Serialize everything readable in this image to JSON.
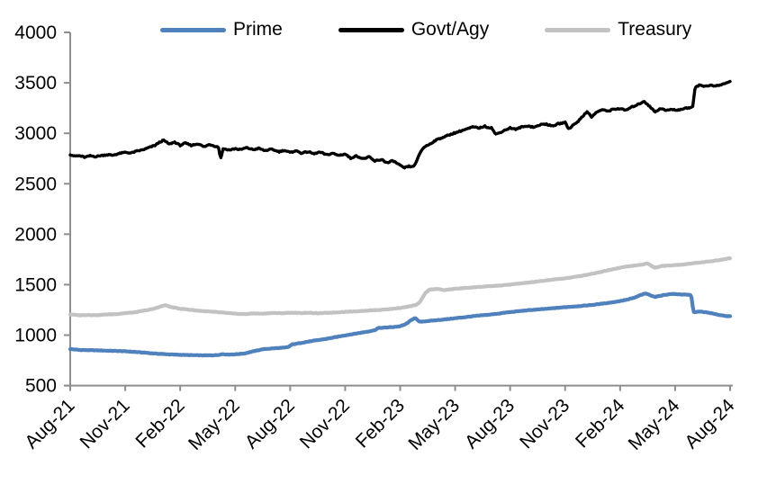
{
  "chart_data": {
    "type": "line",
    "title": "",
    "grid": false,
    "legend_position": "top-center",
    "x_axis": {
      "unit": "months since Aug-2021",
      "range_months": [
        0,
        36
      ],
      "tick_interval_months": 3,
      "tick_labels": [
        "Aug-21",
        "Nov-21",
        "Feb-22",
        "May-22",
        "Aug-22",
        "Nov-22",
        "Feb-23",
        "May-23",
        "Aug-23",
        "Nov-23",
        "Feb-24",
        "May-24",
        "Aug-24"
      ]
    },
    "y_axis": {
      "ylim": [
        500,
        4000
      ],
      "tick_step": 500,
      "tick_labels": [
        "500",
        "1000",
        "1500",
        "2000",
        "2500",
        "3000",
        "3500",
        "4000"
      ]
    },
    "axis_color": "#8E8E8E",
    "series": [
      {
        "name": "Prime",
        "color": "#4F81BD",
        "points": [
          [
            0,
            862
          ],
          [
            0.5,
            853
          ],
          [
            1,
            851
          ],
          [
            1.5,
            849
          ],
          [
            2,
            846
          ],
          [
            2.5,
            843
          ],
          [
            3,
            840
          ],
          [
            3.5,
            834
          ],
          [
            4,
            827
          ],
          [
            4.5,
            819
          ],
          [
            5,
            813
          ],
          [
            5.5,
            808
          ],
          [
            6,
            805
          ],
          [
            6.5,
            802
          ],
          [
            7,
            800
          ],
          [
            7.5,
            799
          ],
          [
            8,
            802
          ],
          [
            8.3,
            812
          ],
          [
            8.6,
            807
          ],
          [
            9,
            810
          ],
          [
            9.5,
            818
          ],
          [
            10,
            840
          ],
          [
            10.5,
            860
          ],
          [
            11,
            868
          ],
          [
            11.7,
            876
          ],
          [
            11.9,
            882
          ],
          [
            12.1,
            908
          ],
          [
            12.5,
            920
          ],
          [
            13,
            936
          ],
          [
            13.5,
            950
          ],
          [
            14,
            964
          ],
          [
            14.5,
            981
          ],
          [
            15,
            998
          ],
          [
            15.5,
            1013
          ],
          [
            16,
            1028
          ],
          [
            16.6,
            1048
          ],
          [
            16.8,
            1070
          ],
          [
            17.2,
            1075
          ],
          [
            17.6,
            1080
          ],
          [
            18,
            1088
          ],
          [
            18.3,
            1108
          ],
          [
            18.6,
            1148
          ],
          [
            18.8,
            1172
          ],
          [
            19.05,
            1132
          ],
          [
            19.3,
            1136
          ],
          [
            19.7,
            1143
          ],
          [
            20,
            1148
          ],
          [
            20.5,
            1157
          ],
          [
            21,
            1167
          ],
          [
            21.5,
            1177
          ],
          [
            22,
            1188
          ],
          [
            22.5,
            1197
          ],
          [
            23,
            1205
          ],
          [
            23.5,
            1217
          ],
          [
            24,
            1228
          ],
          [
            24.5,
            1238
          ],
          [
            25,
            1247
          ],
          [
            25.5,
            1254
          ],
          [
            26,
            1261
          ],
          [
            26.5,
            1269
          ],
          [
            27,
            1277
          ],
          [
            27.5,
            1284
          ],
          [
            28,
            1291
          ],
          [
            28.5,
            1300
          ],
          [
            29,
            1311
          ],
          [
            29.5,
            1323
          ],
          [
            30,
            1338
          ],
          [
            30.4,
            1352
          ],
          [
            30.8,
            1372
          ],
          [
            31.1,
            1396
          ],
          [
            31.4,
            1413
          ],
          [
            31.9,
            1378
          ],
          [
            32.4,
            1398
          ],
          [
            32.8,
            1408
          ],
          [
            33.2,
            1405
          ],
          [
            33.6,
            1400
          ],
          [
            33.88,
            1398
          ],
          [
            34,
            1228
          ],
          [
            34.4,
            1233
          ],
          [
            34.9,
            1220
          ],
          [
            35.3,
            1203
          ],
          [
            35.7,
            1192
          ],
          [
            36,
            1186
          ]
        ]
      },
      {
        "name": "Govt/Agy",
        "color": "#000000",
        "points": [
          [
            0,
            2788
          ],
          [
            0.25,
            2770
          ],
          [
            0.5,
            2780
          ],
          [
            0.8,
            2763
          ],
          [
            1.1,
            2778
          ],
          [
            1.4,
            2768
          ],
          [
            1.7,
            2782
          ],
          [
            2,
            2790
          ],
          [
            2.3,
            2781
          ],
          [
            2.6,
            2798
          ],
          [
            3,
            2812
          ],
          [
            3.3,
            2804
          ],
          [
            3.6,
            2822
          ],
          [
            4,
            2840
          ],
          [
            4.3,
            2857
          ],
          [
            4.6,
            2878
          ],
          [
            4.9,
            2916
          ],
          [
            5.1,
            2929
          ],
          [
            5.4,
            2891
          ],
          [
            5.7,
            2911
          ],
          [
            6,
            2877
          ],
          [
            6.3,
            2902
          ],
          [
            6.6,
            2881
          ],
          [
            7,
            2898
          ],
          [
            7.3,
            2867
          ],
          [
            7.6,
            2892
          ],
          [
            8,
            2868
          ],
          [
            8.1,
            2856
          ],
          [
            8.2,
            2744
          ],
          [
            8.35,
            2849
          ],
          [
            8.7,
            2837
          ],
          [
            9,
            2852
          ],
          [
            9.3,
            2837
          ],
          [
            9.6,
            2856
          ],
          [
            10,
            2837
          ],
          [
            10.3,
            2852
          ],
          [
            10.6,
            2827
          ],
          [
            11,
            2842
          ],
          [
            11.4,
            2817
          ],
          [
            11.7,
            2832
          ],
          [
            12,
            2812
          ],
          [
            12.3,
            2824
          ],
          [
            12.6,
            2804
          ],
          [
            13,
            2818
          ],
          [
            13.3,
            2797
          ],
          [
            13.6,
            2812
          ],
          [
            14,
            2787
          ],
          [
            14.3,
            2801
          ],
          [
            14.6,
            2779
          ],
          [
            15,
            2794
          ],
          [
            15.3,
            2751
          ],
          [
            15.6,
            2777
          ],
          [
            16,
            2747
          ],
          [
            16.3,
            2767
          ],
          [
            16.6,
            2721
          ],
          [
            17,
            2744
          ],
          [
            17.3,
            2704
          ],
          [
            17.6,
            2727
          ],
          [
            18,
            2681
          ],
          [
            18.2,
            2657
          ],
          [
            18.45,
            2671
          ],
          [
            18.7,
            2664
          ],
          [
            18.9,
            2719
          ],
          [
            19.1,
            2811
          ],
          [
            19.3,
            2861
          ],
          [
            19.6,
            2889
          ],
          [
            19.9,
            2924
          ],
          [
            20.2,
            2951
          ],
          [
            20.5,
            2971
          ],
          [
            20.8,
            2991
          ],
          [
            21.1,
            3014
          ],
          [
            21.4,
            3031
          ],
          [
            21.7,
            3047
          ],
          [
            22,
            3061
          ],
          [
            22.3,
            3049
          ],
          [
            22.6,
            3067
          ],
          [
            23,
            3057
          ],
          [
            23.2,
            2991
          ],
          [
            23.45,
            3007
          ],
          [
            23.7,
            3031
          ],
          [
            24,
            3051
          ],
          [
            24.3,
            3037
          ],
          [
            24.6,
            3061
          ],
          [
            25,
            3077
          ],
          [
            25.3,
            3057
          ],
          [
            25.6,
            3081
          ],
          [
            26,
            3091
          ],
          [
            26.3,
            3071
          ],
          [
            26.6,
            3097
          ],
          [
            27,
            3107
          ],
          [
            27.2,
            3041
          ],
          [
            27.4,
            3074
          ],
          [
            27.7,
            3117
          ],
          [
            28,
            3174
          ],
          [
            28.2,
            3221
          ],
          [
            28.45,
            3161
          ],
          [
            28.7,
            3204
          ],
          [
            29,
            3231
          ],
          [
            29.3,
            3217
          ],
          [
            29.6,
            3241
          ],
          [
            30,
            3247
          ],
          [
            30.3,
            3231
          ],
          [
            30.6,
            3257
          ],
          [
            31,
            3284
          ],
          [
            31.3,
            3317
          ],
          [
            31.6,
            3267
          ],
          [
            31.9,
            3211
          ],
          [
            32.2,
            3247
          ],
          [
            32.5,
            3227
          ],
          [
            32.8,
            3237
          ],
          [
            33.1,
            3231
          ],
          [
            33.4,
            3244
          ],
          [
            33.7,
            3251
          ],
          [
            33.95,
            3257
          ],
          [
            34.1,
            3461
          ],
          [
            34.35,
            3477
          ],
          [
            34.6,
            3464
          ],
          [
            34.9,
            3477
          ],
          [
            35.2,
            3467
          ],
          [
            35.5,
            3481
          ],
          [
            35.8,
            3497
          ],
          [
            36,
            3517
          ]
        ]
      },
      {
        "name": "Treasury",
        "color": "#C2C2C2",
        "points": [
          [
            0,
            1205
          ],
          [
            0.5,
            1197
          ],
          [
            1,
            1200
          ],
          [
            1.5,
            1198
          ],
          [
            2,
            1205
          ],
          [
            2.5,
            1208
          ],
          [
            3,
            1218
          ],
          [
            3.5,
            1225
          ],
          [
            4,
            1242
          ],
          [
            4.5,
            1258
          ],
          [
            5,
            1288
          ],
          [
            5.2,
            1297
          ],
          [
            5.5,
            1278
          ],
          [
            6,
            1262
          ],
          [
            6.5,
            1252
          ],
          [
            7,
            1242
          ],
          [
            7.5,
            1235
          ],
          [
            8,
            1228
          ],
          [
            8.5,
            1220
          ],
          [
            9,
            1212
          ],
          [
            9.5,
            1208
          ],
          [
            10,
            1215
          ],
          [
            10.5,
            1212
          ],
          [
            11,
            1220
          ],
          [
            11.5,
            1217
          ],
          [
            12,
            1222
          ],
          [
            12.5,
            1219
          ],
          [
            13,
            1222
          ],
          [
            13.5,
            1216
          ],
          [
            14,
            1221
          ],
          [
            14.5,
            1225
          ],
          [
            15,
            1231
          ],
          [
            15.5,
            1235
          ],
          [
            16,
            1241
          ],
          [
            16.5,
            1246
          ],
          [
            17,
            1252
          ],
          [
            17.5,
            1259
          ],
          [
            18,
            1270
          ],
          [
            18.5,
            1284
          ],
          [
            18.9,
            1301
          ],
          [
            19.1,
            1332
          ],
          [
            19.35,
            1412
          ],
          [
            19.6,
            1452
          ],
          [
            20,
            1458
          ],
          [
            20.4,
            1447
          ],
          [
            20.8,
            1455
          ],
          [
            21.2,
            1462
          ],
          [
            21.6,
            1468
          ],
          [
            22,
            1474
          ],
          [
            22.5,
            1480
          ],
          [
            23,
            1486
          ],
          [
            23.5,
            1492
          ],
          [
            24,
            1501
          ],
          [
            24.5,
            1511
          ],
          [
            25,
            1521
          ],
          [
            25.5,
            1531
          ],
          [
            26,
            1543
          ],
          [
            26.5,
            1553
          ],
          [
            27,
            1563
          ],
          [
            27.5,
            1576
          ],
          [
            28,
            1591
          ],
          [
            28.5,
            1609
          ],
          [
            29,
            1629
          ],
          [
            29.5,
            1649
          ],
          [
            30,
            1669
          ],
          [
            30.4,
            1681
          ],
          [
            30.8,
            1689
          ],
          [
            31.2,
            1699
          ],
          [
            31.5,
            1711
          ],
          [
            31.9,
            1666
          ],
          [
            32.3,
            1686
          ],
          [
            32.7,
            1689
          ],
          [
            33.1,
            1695
          ],
          [
            33.5,
            1701
          ],
          [
            34,
            1713
          ],
          [
            34.5,
            1723
          ],
          [
            35,
            1733
          ],
          [
            35.5,
            1746
          ],
          [
            36,
            1763
          ]
        ]
      }
    ]
  }
}
